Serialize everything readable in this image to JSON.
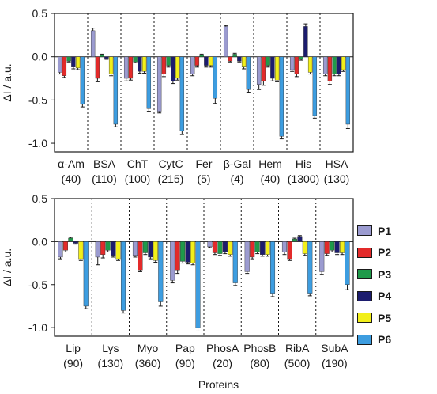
{
  "colors": {
    "P1": "#9b9bd0",
    "P2": "#e32a2a",
    "P3": "#1f9a4a",
    "P4": "#1c1c6e",
    "P5": "#f2ef1a",
    "P6": "#3d9de0"
  },
  "chart_data": [
    {
      "type": "bar",
      "ylabel": "ΔI / a.u.",
      "ylim": [
        -1.1,
        0.5
      ],
      "yticks": [
        "0.5",
        "0.0",
        "-0.5",
        "-1.0"
      ],
      "categories": [
        "α-Am",
        "BSA",
        "ChT",
        "CytC",
        "Fer",
        "β-Gal",
        "Hem",
        "His",
        "HSA"
      ],
      "category_notes": [
        "(40)",
        "(110)",
        "(100)",
        "(215)",
        "(5)",
        "(4)",
        "(40)",
        "(1300)",
        "(130)"
      ],
      "series": [
        {
          "name": "P1",
          "values": [
            -0.18,
            0.3,
            -0.25,
            -0.63,
            -0.2,
            0.35,
            -0.32,
            -0.15,
            -0.2
          ],
          "errors": [
            0.02,
            0.03,
            0.03,
            0.02,
            0.02,
            0.01,
            0.06,
            0.02,
            0.02
          ]
        },
        {
          "name": "P2",
          "values": [
            -0.22,
            -0.25,
            -0.25,
            -0.2,
            -0.1,
            -0.05,
            -0.28,
            -0.2,
            -0.28
          ],
          "errors": [
            0.02,
            0.04,
            0.02,
            0.03,
            0.02,
            0.01,
            0.05,
            0.03,
            0.04
          ]
        },
        {
          "name": "P3",
          "values": [
            -0.05,
            0.02,
            -0.06,
            -0.1,
            0.02,
            0.03,
            -0.1,
            -0.03,
            -0.2
          ],
          "errors": [
            0.01,
            0.01,
            0.01,
            0.02,
            0.01,
            0.01,
            0.02,
            0.01,
            0.02
          ]
        },
        {
          "name": "P4",
          "values": [
            -0.12,
            -0.02,
            -0.17,
            -0.28,
            -0.1,
            -0.05,
            -0.25,
            0.35,
            -0.2
          ],
          "errors": [
            0.02,
            0.01,
            0.02,
            0.03,
            0.02,
            0.01,
            0.03,
            0.03,
            0.02
          ]
        },
        {
          "name": "P5",
          "values": [
            -0.13,
            -0.2,
            -0.17,
            -0.25,
            -0.1,
            -0.12,
            -0.27,
            -0.18,
            -0.15
          ],
          "errors": [
            0.02,
            0.02,
            0.02,
            0.02,
            0.02,
            0.02,
            0.02,
            0.02,
            0.02
          ]
        },
        {
          "name": "P6",
          "values": [
            -0.55,
            -0.78,
            -0.6,
            -0.86,
            -0.48,
            -0.38,
            -0.92,
            -0.68,
            -0.78
          ],
          "errors": [
            0.03,
            0.03,
            0.03,
            0.04,
            0.06,
            0.03,
            0.03,
            0.03,
            0.05
          ]
        }
      ],
      "grid": false,
      "separators": "dotted vertical lines between proteins"
    },
    {
      "type": "bar",
      "ylabel": "ΔI / a.u.",
      "ylim": [
        -1.1,
        0.5
      ],
      "yticks": [
        "0.5",
        "0.0",
        "-0.5",
        "-1.0"
      ],
      "xlabel": "Proteins",
      "categories": [
        "Lip",
        "Lys",
        "Myo",
        "Pap",
        "PhosA",
        "PhosB",
        "RibA",
        "SubA"
      ],
      "category_notes": [
        "(90)",
        "(130)",
        "(360)",
        "(90)",
        "(20)",
        "(80)",
        "(500)",
        "(190)"
      ],
      "series": [
        {
          "name": "P1",
          "values": [
            -0.18,
            -0.18,
            -0.16,
            -0.45,
            -0.06,
            -0.35,
            -0.12,
            -0.35
          ],
          "errors": [
            0.02,
            0.09,
            0.02,
            0.03,
            0.01,
            0.02,
            0.03,
            0.03
          ]
        },
        {
          "name": "P2",
          "values": [
            -0.1,
            -0.15,
            -0.33,
            -0.33,
            -0.13,
            -0.18,
            -0.2,
            -0.14
          ],
          "errors": [
            0.02,
            0.04,
            0.02,
            0.04,
            0.02,
            0.02,
            0.02,
            0.02
          ]
        },
        {
          "name": "P3",
          "values": [
            0.04,
            -0.1,
            -0.13,
            -0.23,
            -0.14,
            -0.12,
            0.03,
            -0.1
          ],
          "errors": [
            0.01,
            0.02,
            0.02,
            0.02,
            0.02,
            0.02,
            0.01,
            0.02
          ]
        },
        {
          "name": "P4",
          "values": [
            -0.02,
            -0.16,
            -0.18,
            -0.24,
            -0.12,
            -0.15,
            0.06,
            -0.13
          ],
          "errors": [
            0.01,
            0.02,
            0.02,
            0.02,
            0.02,
            0.02,
            0.01,
            0.02
          ]
        },
        {
          "name": "P5",
          "values": [
            -0.2,
            -0.2,
            -0.22,
            -0.25,
            -0.15,
            -0.15,
            -0.14,
            -0.13
          ],
          "errors": [
            0.02,
            0.02,
            0.02,
            0.02,
            0.02,
            0.02,
            0.02,
            0.02
          ]
        },
        {
          "name": "P6",
          "values": [
            -0.75,
            -0.8,
            -0.7,
            -1.0,
            -0.48,
            -0.6,
            -0.6,
            -0.5
          ],
          "errors": [
            0.03,
            0.03,
            0.05,
            0.04,
            0.03,
            0.04,
            0.03,
            0.06
          ]
        }
      ],
      "grid": false,
      "legend": "right",
      "separators": "dotted vertical lines between proteins"
    }
  ]
}
